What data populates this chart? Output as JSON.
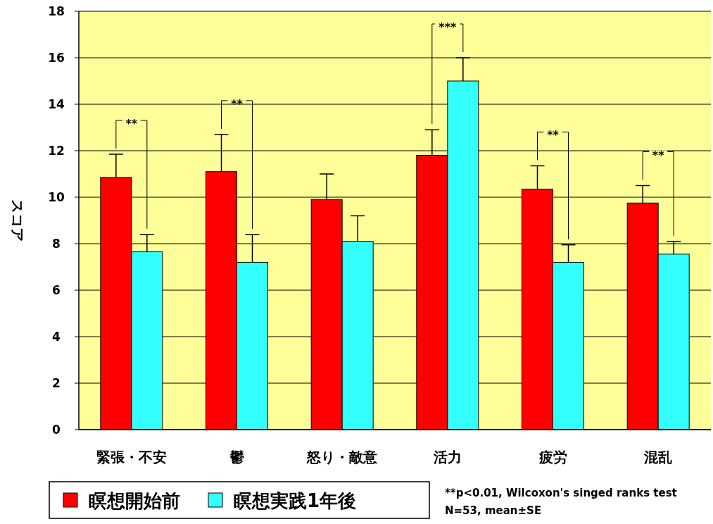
{
  "chart_data": {
    "type": "bar",
    "ylabel": "スコア",
    "categories": [
      "緊張・不安",
      "鬱",
      "怒り・敵意",
      "活力",
      "疲労",
      "混乱"
    ],
    "series": [
      {
        "name": "瞑想開始前",
        "color": "#ff0000",
        "values": [
          10.85,
          11.1,
          9.9,
          11.8,
          10.35,
          9.75
        ],
        "errors": [
          1.0,
          1.6,
          1.1,
          1.1,
          1.0,
          0.75
        ]
      },
      {
        "name": "瞑想実践1年後",
        "color": "#33ffff",
        "values": [
          7.65,
          7.2,
          8.1,
          15.0,
          7.2,
          7.55
        ],
        "errors": [
          0.75,
          1.2,
          1.1,
          1.0,
          0.75,
          0.55
        ]
      }
    ],
    "ylim": [
      0,
      18
    ],
    "yticks": [
      0,
      2,
      4,
      6,
      8,
      10,
      12,
      14,
      16,
      18
    ],
    "grid": "y",
    "legend": "bottom",
    "annotations": [
      "**",
      "**",
      "***",
      "**",
      "**",
      "**p<0.01, Wilcoxon's singed ranks test",
      "N=53, mean±SE"
    ]
  }
}
